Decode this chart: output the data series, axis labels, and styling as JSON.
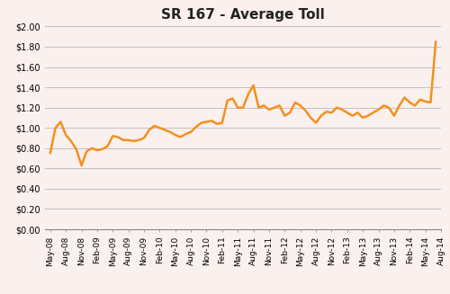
{
  "title": "SR 167 - Average Toll",
  "line_color": "#F4901E",
  "line_width": 1.8,
  "background_color": "#FAF0EE",
  "grid_color": "#C0C0C0",
  "ylim": [
    0.0,
    2.0
  ],
  "ytick_step": 0.2,
  "values": [
    0.75,
    1.0,
    1.06,
    0.93,
    0.87,
    0.79,
    0.63,
    0.77,
    0.8,
    0.78,
    0.79,
    0.82,
    0.92,
    0.91,
    0.88,
    0.88,
    0.87,
    0.88,
    0.9,
    0.98,
    1.02,
    1.0,
    0.98,
    0.96,
    0.93,
    0.91,
    0.94,
    0.96,
    1.01,
    1.05,
    1.06,
    1.07,
    1.04,
    1.05,
    1.27,
    1.29,
    1.2,
    1.2,
    1.33,
    1.42,
    1.2,
    1.22,
    1.18,
    1.2,
    1.22,
    1.12,
    1.15,
    1.25,
    1.22,
    1.17,
    1.1,
    1.05,
    1.12,
    1.16,
    1.15,
    1.2,
    1.18,
    1.15,
    1.12,
    1.15,
    1.1,
    1.12,
    1.15,
    1.18,
    1.22,
    1.2,
    1.12,
    1.22,
    1.3,
    1.25,
    1.22,
    1.28,
    1.26,
    1.25,
    1.85
  ],
  "tick_labels": [
    "May-08",
    "Aug-08",
    "Nov-08",
    "Feb-09",
    "May-09",
    "Aug-09",
    "Nov-09",
    "Feb-10",
    "May-10",
    "Aug-10",
    "Nov-10",
    "Feb-11",
    "May-11",
    "Aug-11",
    "Nov-11",
    "Feb-12",
    "May-12",
    "Aug-12",
    "Nov-12",
    "Feb-13",
    "May-13",
    "Aug-13",
    "Nov-13",
    "Feb-14",
    "May-14",
    "Aug-14"
  ],
  "tick_positions": [
    0,
    3,
    6,
    9,
    12,
    15,
    18,
    21,
    24,
    27,
    30,
    33,
    36,
    39,
    42,
    45,
    48,
    51,
    54,
    57,
    60,
    63,
    66,
    69,
    72,
    75
  ],
  "title_fontsize": 11,
  "tick_fontsize": 6.5,
  "ylabel_fontsize": 7
}
